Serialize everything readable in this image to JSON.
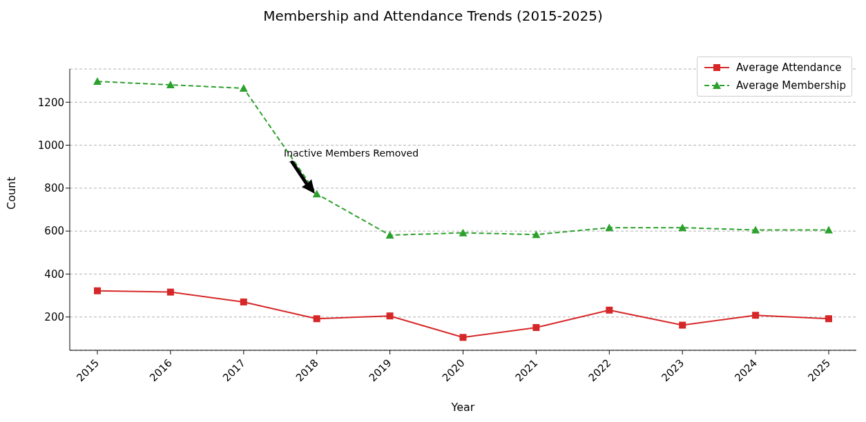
{
  "chart_data": {
    "type": "line",
    "title": "Membership and Attendance Trends (2015-2025)",
    "xlabel": "Year",
    "ylabel": "Count",
    "categories": [
      "2015",
      "2016",
      "2017",
      "2018",
      "2019",
      "2020",
      "2021",
      "2022",
      "2023",
      "2024",
      "2025"
    ],
    "series": [
      {
        "name": "Average Attendance",
        "color": "#d62728",
        "marker": "square",
        "line_style": "solid",
        "values": [
          322,
          316,
          270,
          192,
          205,
          105,
          151,
          232,
          162,
          208,
          192
        ]
      },
      {
        "name": "Average Membership",
        "color": "#2ca02c",
        "marker": "triangle",
        "line_style": "dashed",
        "values": [
          1297,
          1281,
          1265,
          773,
          581,
          592,
          584,
          616,
          616,
          605,
          605
        ]
      }
    ],
    "ylim": [
      45,
      1355
    ],
    "yticks": [
      200,
      400,
      600,
      800,
      1000,
      1200
    ],
    "grid": "y",
    "legend": "top right",
    "annotations": [
      "Inactive Members Removed"
    ]
  }
}
